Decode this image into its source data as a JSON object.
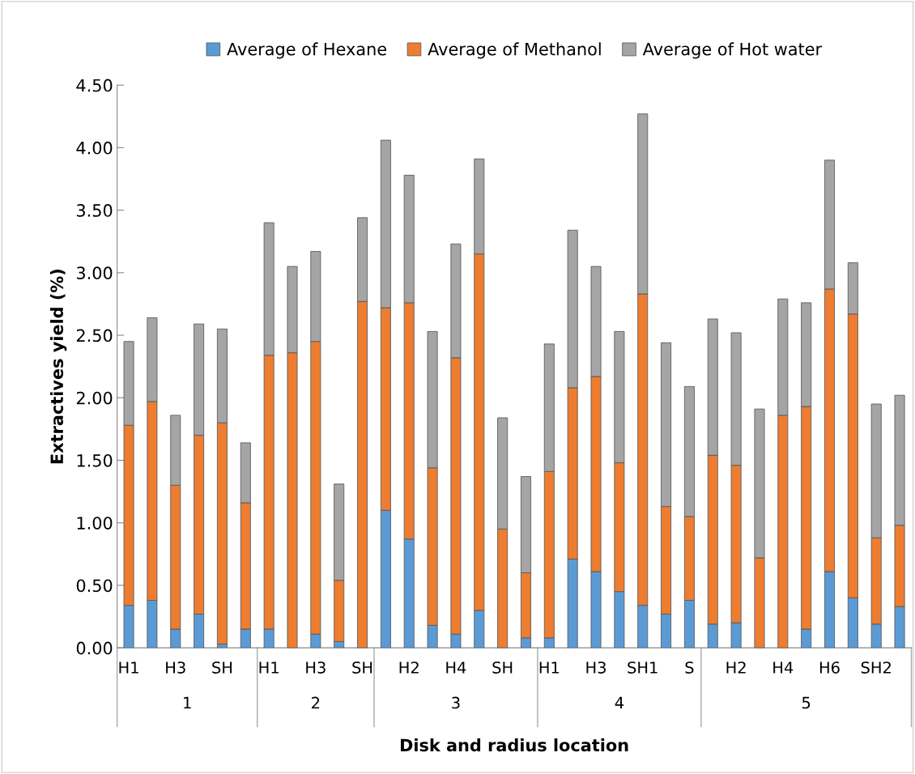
{
  "chart_data": {
    "type": "bar",
    "stacked": true,
    "xlabel": "Disk and radius location",
    "ylabel": "Extractives yield (%)",
    "categories": [
      "H1",
      null,
      "H3",
      null,
      "SH",
      null,
      "H1",
      null,
      "H3",
      null,
      "SH",
      null,
      "H2",
      null,
      "H4",
      null,
      "SH",
      null,
      "H1",
      null,
      "H3",
      null,
      "SH1",
      null,
      "S",
      null,
      "H2",
      null,
      "H4",
      null,
      "H6",
      null,
      "SH2",
      null
    ],
    "series": [
      {
        "name": "Average of Hexane",
        "color": "#5b9bd5",
        "values": [
          0.34,
          0.38,
          0.15,
          0.27,
          0.03,
          0.15,
          0.15,
          0,
          0.11,
          0.05,
          0,
          1.1,
          0.87,
          0.18,
          0.11,
          0.3,
          0,
          0.08,
          0.08,
          0.71,
          0.61,
          0.45,
          0.34,
          0.27,
          0.38,
          0.19,
          0.2,
          0,
          0,
          0.15,
          0.61,
          0.4,
          0.19,
          0.33
        ]
      },
      {
        "name": "Average of Methanol",
        "color": "#ed7d31",
        "values": [
          1.44,
          1.59,
          1.15,
          1.43,
          1.77,
          1.01,
          2.19,
          2.36,
          2.34,
          0.49,
          2.77,
          1.62,
          1.89,
          1.26,
          2.21,
          2.85,
          0.95,
          0.52,
          1.33,
          1.37,
          1.56,
          1.03,
          2.49,
          0.86,
          0.67,
          1.35,
          1.26,
          0.72,
          1.86,
          1.78,
          2.26,
          2.27,
          0.69,
          0.65
        ]
      },
      {
        "name": "Average of Hot water",
        "color": "#a5a5a5",
        "values": [
          0.67,
          0.67,
          0.56,
          0.89,
          0.75,
          0.48,
          1.06,
          0.69,
          0.72,
          0.77,
          0.67,
          1.34,
          1.02,
          1.09,
          0.91,
          0.76,
          0.89,
          0.77,
          1.02,
          1.26,
          0.88,
          1.05,
          1.44,
          1.31,
          1.04,
          1.09,
          1.06,
          1.19,
          0.93,
          0.83,
          1.03,
          0.41,
          1.07,
          1.04
        ]
      }
    ],
    "ylim": [
      0,
      4.5
    ],
    "yticks": [
      {
        "value": 0,
        "label": "0.00"
      },
      {
        "value": 0.5,
        "label": "0.50"
      },
      {
        "value": 1,
        "label": "1.00"
      },
      {
        "value": 1.5,
        "label": "1.50"
      },
      {
        "value": 2,
        "label": "2.00"
      },
      {
        "value": 2.5,
        "label": "2.50"
      },
      {
        "value": 3,
        "label": "3.00"
      },
      {
        "value": 3.5,
        "label": "3.50"
      },
      {
        "value": 4,
        "label": "4.00"
      },
      {
        "value": 4.5,
        "label": "4.50"
      }
    ],
    "annotations": [
      "1",
      "2",
      "3",
      "4",
      "5"
    ],
    "legend": "top",
    "grid": false
  }
}
